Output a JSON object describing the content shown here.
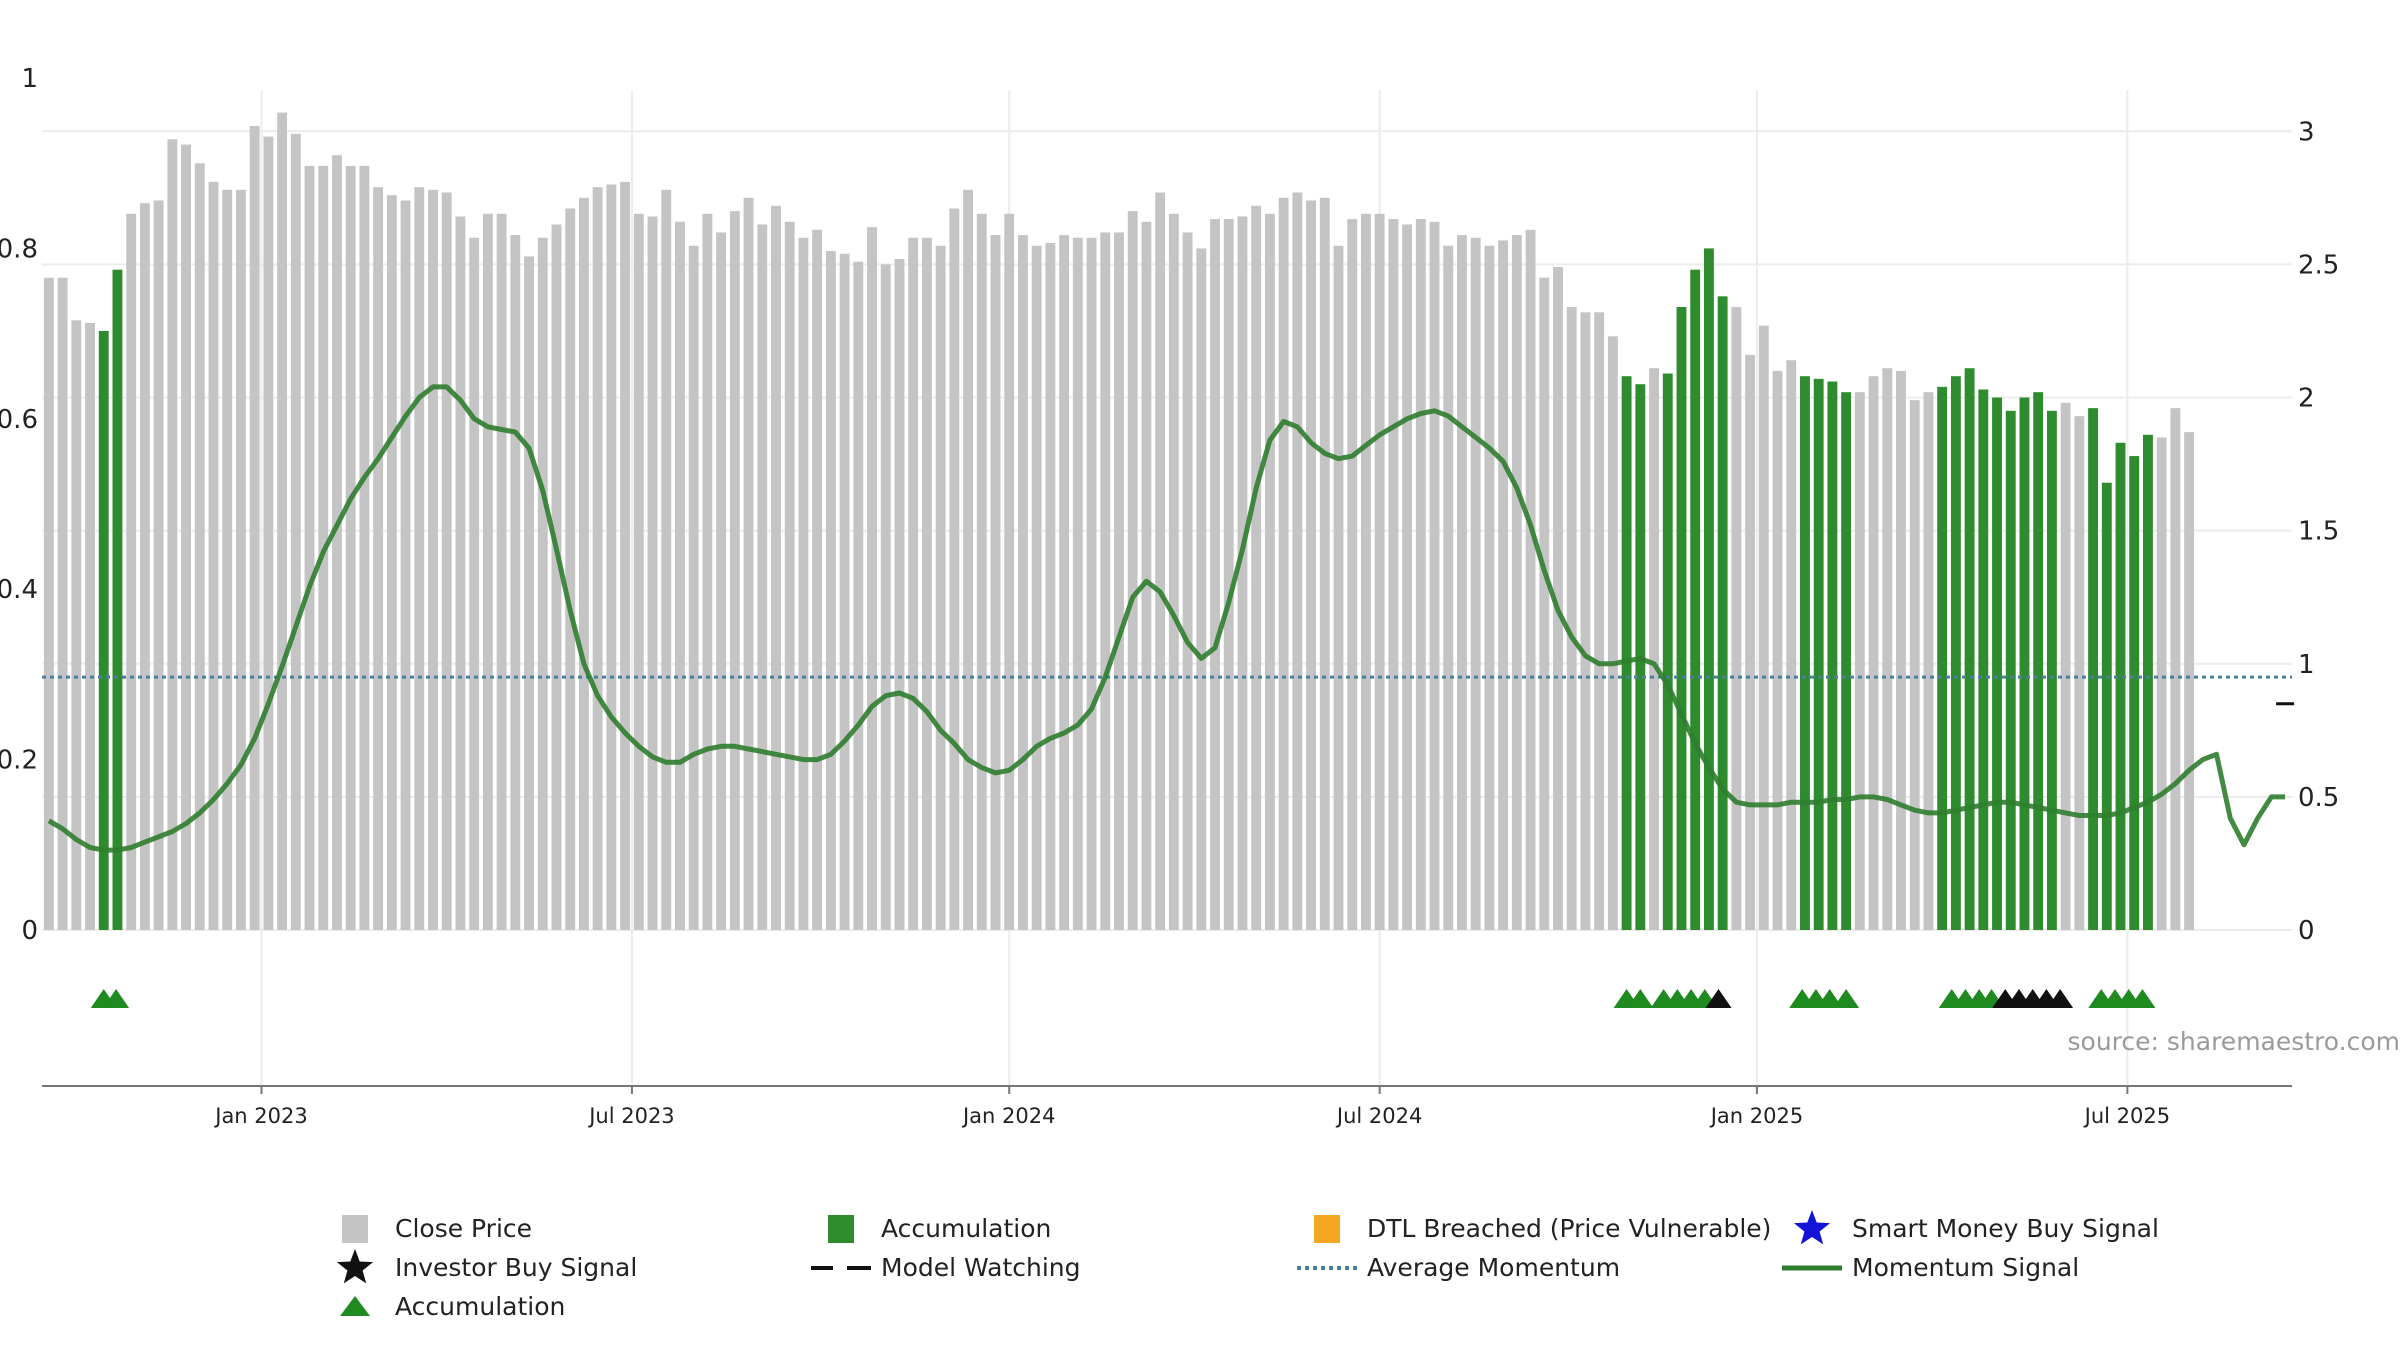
{
  "chart_data": {
    "type": "bar",
    "source": "source: sharemaestro.com",
    "colors": {
      "close": "#c4c4c4",
      "accumulation": "#2e8b2e",
      "momentum": "#2f7d2f",
      "avg_momentum": "#4a7fa0",
      "grid": "#ececec",
      "triangle_green": "#1f8a1f",
      "triangle_black": "#111111",
      "dtl": "#f5a623",
      "smart_money": "#1414d8"
    },
    "left_axis": {
      "min": 0,
      "max": 1,
      "ticks": [
        "0",
        "0.2",
        "0.4",
        "0.6",
        "0.8",
        "1"
      ]
    },
    "right_axis": {
      "min": 0,
      "max": 3.2,
      "ticks": [
        "0",
        "0.5",
        "1",
        "1.5",
        "2",
        "2.5",
        "3"
      ]
    },
    "x_range": {
      "start_week": 0,
      "end_week": 164
    },
    "x_ticks": [
      {
        "label": "Jan 2023",
        "week": 16
      },
      {
        "label": "Jul 2023",
        "week": 43
      },
      {
        "label": "Jan 2024",
        "week": 70.5
      },
      {
        "label": "Jul 2024",
        "week": 97.5
      },
      {
        "label": "Jan 2025",
        "week": 125
      },
      {
        "label": "Jul 2025",
        "week": 152
      }
    ],
    "close_prices": [
      2.45,
      2.45,
      2.29,
      2.28,
      2.25,
      2.48,
      2.69,
      2.73,
      2.74,
      2.97,
      2.95,
      2.88,
      2.81,
      2.78,
      2.78,
      3.02,
      2.98,
      3.07,
      2.99,
      2.87,
      2.87,
      2.91,
      2.87,
      2.87,
      2.79,
      2.76,
      2.74,
      2.79,
      2.78,
      2.77,
      2.68,
      2.6,
      2.69,
      2.69,
      2.61,
      2.53,
      2.6,
      2.65,
      2.71,
      2.75,
      2.79,
      2.8,
      2.81,
      2.69,
      2.68,
      2.78,
      2.66,
      2.57,
      2.69,
      2.62,
      2.7,
      2.75,
      2.65,
      2.72,
      2.66,
      2.6,
      2.63,
      2.55,
      2.54,
      2.51,
      2.64,
      2.5,
      2.52,
      2.6,
      2.6,
      2.57,
      2.71,
      2.78,
      2.69,
      2.61,
      2.69,
      2.61,
      2.57,
      2.58,
      2.61,
      2.6,
      2.6,
      2.62,
      2.62,
      2.7,
      2.66,
      2.77,
      2.69,
      2.62,
      2.56,
      2.67,
      2.67,
      2.68,
      2.72,
      2.69,
      2.75,
      2.77,
      2.74,
      2.75,
      2.57,
      2.67,
      2.69,
      2.69,
      2.67,
      2.65,
      2.67,
      2.66,
      2.57,
      2.61,
      2.6,
      2.57,
      2.59,
      2.61,
      2.63,
      2.45,
      2.49,
      2.34,
      2.32,
      2.32,
      2.23,
      2.08,
      2.05,
      2.11,
      2.09,
      2.34,
      2.48,
      2.56,
      2.38,
      2.34,
      2.16,
      2.27,
      2.1,
      2.14,
      2.08,
      2.07,
      2.06,
      2.02,
      2.02,
      2.08,
      2.11,
      2.1,
      1.99,
      2.02,
      2.04,
      2.08,
      2.11,
      2.03,
      2.0,
      1.95,
      2.0,
      2.02,
      1.95,
      1.98,
      1.93,
      1.96,
      1.68,
      1.83,
      1.78,
      1.86,
      1.85,
      1.96,
      1.87
    ],
    "accumulation_weeks": [
      4,
      5,
      115,
      116,
      118,
      119,
      120,
      121,
      122,
      128,
      129,
      130,
      131,
      138,
      139,
      140,
      141,
      142,
      143,
      144,
      145,
      146,
      149,
      150,
      151,
      152,
      153
    ],
    "momentum_signal": [
      0.41,
      0.38,
      0.34,
      0.31,
      0.3,
      0.3,
      0.31,
      0.33,
      0.35,
      0.37,
      0.4,
      0.44,
      0.49,
      0.55,
      0.62,
      0.72,
      0.85,
      0.99,
      1.14,
      1.29,
      1.42,
      1.52,
      1.62,
      1.7,
      1.77,
      1.85,
      1.93,
      2.0,
      2.04,
      2.04,
      1.99,
      1.92,
      1.89,
      1.88,
      1.87,
      1.81,
      1.65,
      1.43,
      1.2,
      1.0,
      0.88,
      0.8,
      0.74,
      0.69,
      0.65,
      0.63,
      0.63,
      0.66,
      0.68,
      0.69,
      0.69,
      0.68,
      0.67,
      0.66,
      0.65,
      0.64,
      0.64,
      0.66,
      0.71,
      0.77,
      0.84,
      0.88,
      0.89,
      0.87,
      0.82,
      0.75,
      0.7,
      0.64,
      0.61,
      0.59,
      0.6,
      0.64,
      0.69,
      0.72,
      0.74,
      0.77,
      0.83,
      0.95,
      1.1,
      1.25,
      1.31,
      1.27,
      1.18,
      1.08,
      1.02,
      1.06,
      1.23,
      1.43,
      1.66,
      1.84,
      1.91,
      1.89,
      1.83,
      1.79,
      1.77,
      1.78,
      1.82,
      1.86,
      1.89,
      1.92,
      1.94,
      1.95,
      1.93,
      1.89,
      1.85,
      1.81,
      1.76,
      1.66,
      1.52,
      1.35,
      1.2,
      1.1,
      1.03,
      1.0,
      1.0,
      1.01,
      1.02,
      1.0,
      0.92,
      0.81,
      0.7,
      0.61,
      0.53,
      0.48,
      0.47,
      0.47,
      0.47,
      0.48,
      0.48,
      0.48,
      0.49,
      0.49,
      0.5,
      0.5,
      0.49,
      0.47,
      0.45,
      0.44,
      0.44,
      0.45,
      0.46,
      0.47,
      0.48,
      0.48,
      0.47,
      0.46,
      0.45,
      0.44,
      0.43,
      0.43,
      0.43,
      0.44,
      0.46,
      0.48,
      0.51,
      0.55,
      0.6,
      0.64,
      0.66,
      0.42,
      0.32,
      0.42,
      0.5,
      0.5
    ],
    "average_momentum": 0.95,
    "model_watching": {
      "week": 163,
      "value": 0.85
    },
    "signal_markers": [
      {
        "week": 4.0,
        "type": "accumulation"
      },
      {
        "week": 4.9,
        "type": "accumulation"
      },
      {
        "week": 115.0,
        "type": "accumulation"
      },
      {
        "week": 116.0,
        "type": "accumulation"
      },
      {
        "week": 117.7,
        "type": "accumulation"
      },
      {
        "week": 118.7,
        "type": "accumulation"
      },
      {
        "week": 119.7,
        "type": "accumulation"
      },
      {
        "week": 120.7,
        "type": "accumulation"
      },
      {
        "week": 121.7,
        "type": "investor-buy"
      },
      {
        "week": 127.8,
        "type": "accumulation"
      },
      {
        "week": 128.8,
        "type": "accumulation"
      },
      {
        "week": 129.8,
        "type": "accumulation"
      },
      {
        "week": 131.0,
        "type": "accumulation"
      },
      {
        "week": 138.7,
        "type": "accumulation"
      },
      {
        "week": 139.7,
        "type": "accumulation"
      },
      {
        "week": 140.7,
        "type": "accumulation"
      },
      {
        "week": 141.6,
        "type": "accumulation"
      },
      {
        "week": 142.6,
        "type": "investor-buy"
      },
      {
        "week": 143.6,
        "type": "investor-buy"
      },
      {
        "week": 144.6,
        "type": "investor-buy"
      },
      {
        "week": 145.6,
        "type": "investor-buy"
      },
      {
        "week": 146.6,
        "type": "investor-buy"
      },
      {
        "week": 149.6,
        "type": "accumulation"
      },
      {
        "week": 150.6,
        "type": "accumulation"
      },
      {
        "week": 151.6,
        "type": "accumulation"
      },
      {
        "week": 152.6,
        "type": "accumulation"
      }
    ],
    "legend": [
      {
        "label": "Close Price",
        "symbol": "gray-bar"
      },
      {
        "label": "Accumulation",
        "symbol": "green-bar"
      },
      {
        "label": "DTL Breached (Price Vulnerable)",
        "symbol": "orange-bar"
      },
      {
        "label": "Smart Money Buy Signal",
        "symbol": "blue-star"
      },
      {
        "label": "Investor Buy Signal",
        "symbol": "black-star"
      },
      {
        "label": "Model Watching",
        "symbol": "dash"
      },
      {
        "label": "Average Momentum",
        "symbol": "dotted-line"
      },
      {
        "label": "Momentum Signal",
        "symbol": "green-line"
      },
      {
        "label": "Accumulation",
        "symbol": "green-triangle"
      }
    ]
  }
}
